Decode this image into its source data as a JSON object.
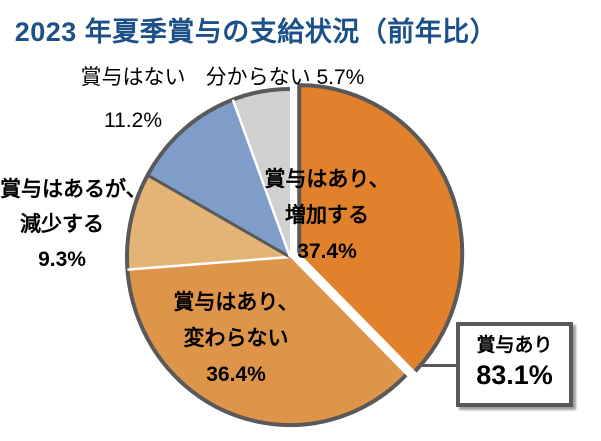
{
  "title": {
    "text": "2023 年夏季賞与の支給状況（前年比）",
    "color": "#1B5088"
  },
  "chart_data": {
    "type": "pie",
    "title": "2023 年夏季賞与の支給状況（前年比）",
    "unit": "%",
    "start_angle_deg": 0,
    "direction": "clockwise",
    "outline_color": "#595959",
    "separator_color": "#FFFFFF",
    "slices": [
      {
        "label": "賞与はあり、増加する",
        "label_lines": [
          "賞与はあり、",
          "増加する"
        ],
        "value": 37.4,
        "pct_text": "37.4%",
        "color": "#E2812B",
        "exploded": true
      },
      {
        "label": "賞与はあり、変わらない",
        "label_lines": [
          "賞与はあり、",
          "変わらない"
        ],
        "value": 36.4,
        "pct_text": "36.4%",
        "color": "#DF9549",
        "exploded": false
      },
      {
        "label": "賞与はあるが、減少する",
        "label_lines": [
          "賞与はあるが、",
          "減少する"
        ],
        "value": 9.3,
        "pct_text": "9.3%",
        "color": "#E4B476",
        "exploded": false
      },
      {
        "label": "賞与はない",
        "label_lines": [
          "賞与はない"
        ],
        "value": 11.2,
        "pct_text": "11.2%",
        "color": "#7E9DC9",
        "exploded": false
      },
      {
        "label": "分からない",
        "label_lines": [
          "分からない"
        ],
        "value": 5.7,
        "pct_text": "5.7%",
        "color": "#D0D0D0",
        "exploded": false
      }
    ],
    "callout": {
      "label": "賞与あり",
      "value": 83.1,
      "pct_text": "83.1%"
    }
  }
}
